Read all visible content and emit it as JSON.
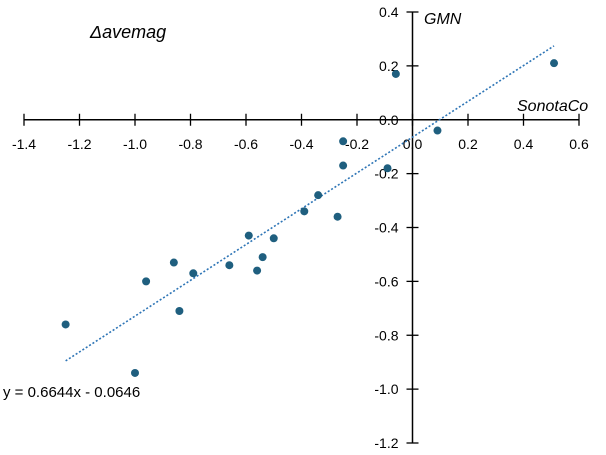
{
  "chart_data": {
    "type": "scatter",
    "title": "Δavemag",
    "xlabel": "SonotaCo",
    "ylabel": "GMN",
    "xlim": [
      -1.4,
      0.6
    ],
    "ylim": [
      -1.2,
      0.4
    ],
    "xticks": [
      -1.4,
      -1.2,
      -1.0,
      -0.8,
      -0.6,
      -0.4,
      -0.2,
      0.0,
      0.2,
      0.4,
      0.6
    ],
    "xtick_labels": [
      "-1.4",
      "-1.2",
      "-1.0",
      "-0.8",
      "-0.6",
      "-0.4",
      "-0.2",
      "0.0",
      "0.2",
      "0.4",
      "0.6"
    ],
    "yticks": [
      -1.2,
      -1.0,
      -0.8,
      -0.6,
      -0.4,
      -0.2,
      0.0,
      0.2,
      0.4
    ],
    "ytick_labels": [
      "-1.2",
      "-1.0",
      "-0.8",
      "-0.6",
      "-0.4",
      "-0.2",
      "0.0",
      "0.2",
      "0.4"
    ],
    "grid": false,
    "marker_color": "#1f5f7f",
    "trendline_color": "#2e75b6",
    "points": [
      {
        "x": -1.25,
        "y": -0.76
      },
      {
        "x": -1.0,
        "y": -0.94
      },
      {
        "x": -0.96,
        "y": -0.6
      },
      {
        "x": -0.86,
        "y": -0.53
      },
      {
        "x": -0.84,
        "y": -0.71
      },
      {
        "x": -0.79,
        "y": -0.57
      },
      {
        "x": -0.66,
        "y": -0.54
      },
      {
        "x": -0.59,
        "y": -0.43
      },
      {
        "x": -0.56,
        "y": -0.56
      },
      {
        "x": -0.54,
        "y": -0.51
      },
      {
        "x": -0.5,
        "y": -0.44
      },
      {
        "x": -0.39,
        "y": -0.34
      },
      {
        "x": -0.34,
        "y": -0.28
      },
      {
        "x": -0.27,
        "y": -0.36
      },
      {
        "x": -0.25,
        "y": -0.08
      },
      {
        "x": -0.25,
        "y": -0.17
      },
      {
        "x": -0.09,
        "y": -0.18
      },
      {
        "x": -0.06,
        "y": 0.17
      },
      {
        "x": 0.09,
        "y": -0.04
      },
      {
        "x": 0.51,
        "y": 0.21
      }
    ],
    "trendline": {
      "slope": 0.6644,
      "intercept": -0.0646,
      "x_range": [
        -1.25,
        0.51
      ],
      "label": "y = 0.6644x - 0.0646"
    }
  }
}
